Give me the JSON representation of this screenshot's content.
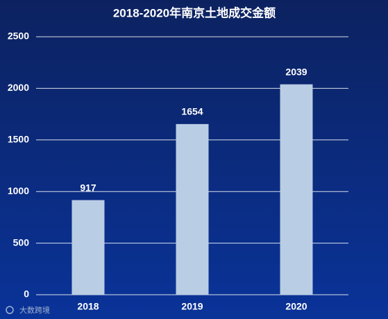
{
  "chart_data": {
    "type": "bar",
    "title": "2018-2020年南京土地成交金额",
    "categories": [
      "2018",
      "2019",
      "2020"
    ],
    "values": [
      917,
      1654,
      2039
    ],
    "color": "#b9cde5",
    "ylim": [
      0,
      2500
    ],
    "yticks": [
      0,
      500,
      1000,
      1500,
      2000,
      2500
    ],
    "grid": true,
    "watermark": "大数跨境"
  }
}
